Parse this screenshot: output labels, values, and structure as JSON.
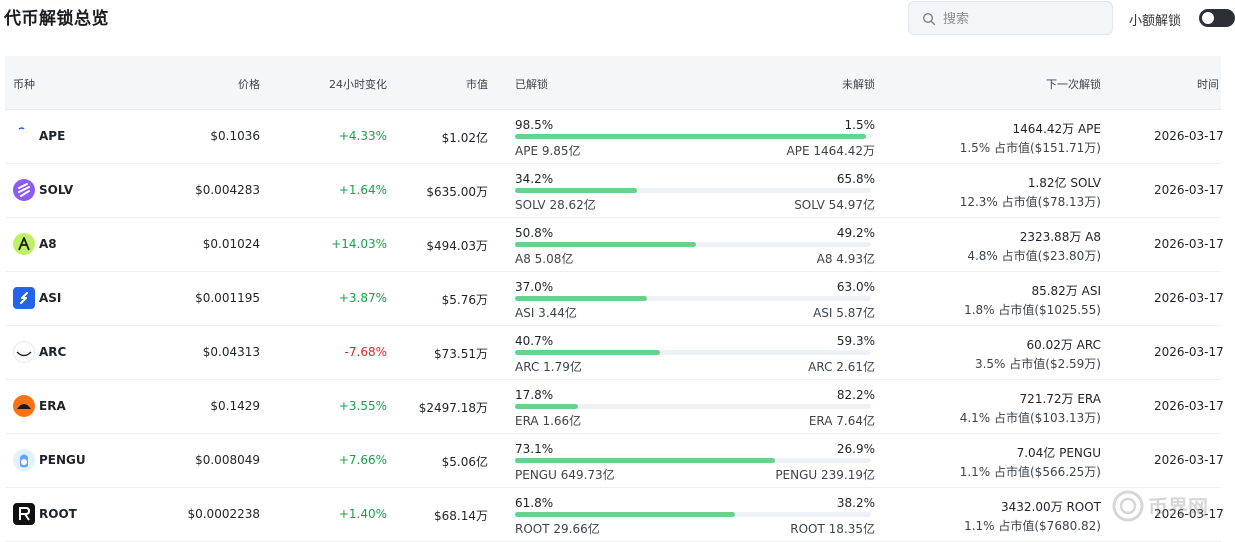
{
  "header": {
    "title": "代币解锁总览",
    "search_placeholder": "搜索",
    "toggle_label": "小额解锁",
    "toggle_on": true
  },
  "columns": {
    "coin": "币种",
    "price": "价格",
    "change_24h": "24小时变化",
    "market_cap": "市值",
    "unlocked": "已解锁",
    "locked": "未解锁",
    "next_unlock": "下一次解锁",
    "time": "时间"
  },
  "colors": {
    "positive": "#16a34a",
    "negative": "#dc2626",
    "progress": "#6cd08d"
  },
  "rows": [
    {
      "symbol": "APE",
      "icon": "ape-icon",
      "price": "$0.1036",
      "change": "+4.33%",
      "direction": "up",
      "market_cap": "$1.02亿",
      "unlocked_pct": "98.5%",
      "unlocked_ratio": 0.985,
      "locked_pct": "1.5%",
      "unlocked_amount": "APE 9.85亿",
      "locked_amount": "APE 1464.42万",
      "next_amount": "1464.42万 APE",
      "next_share": "1.5% 占市值($151.71万)",
      "time": "2026-03-17"
    },
    {
      "symbol": "SOLV",
      "icon": "solv-icon",
      "price": "$0.004283",
      "change": "+1.64%",
      "direction": "up",
      "market_cap": "$635.00万",
      "unlocked_pct": "34.2%",
      "unlocked_ratio": 0.342,
      "locked_pct": "65.8%",
      "unlocked_amount": "SOLV 28.62亿",
      "locked_amount": "SOLV 54.97亿",
      "next_amount": "1.82亿 SOLV",
      "next_share": "12.3% 占市值($78.13万)",
      "time": "2026-03-17"
    },
    {
      "symbol": "A8",
      "icon": "a8-icon",
      "price": "$0.01024",
      "change": "+14.03%",
      "direction": "up",
      "market_cap": "$494.03万",
      "unlocked_pct": "50.8%",
      "unlocked_ratio": 0.508,
      "locked_pct": "49.2%",
      "unlocked_amount": "A8 5.08亿",
      "locked_amount": "A8 4.93亿",
      "next_amount": "2323.88万 A8",
      "next_share": "4.8% 占市值($23.80万)",
      "time": "2026-03-17"
    },
    {
      "symbol": "ASI",
      "icon": "asi-icon",
      "price": "$0.001195",
      "change": "+3.87%",
      "direction": "up",
      "market_cap": "$5.76万",
      "unlocked_pct": "37.0%",
      "unlocked_ratio": 0.37,
      "locked_pct": "63.0%",
      "unlocked_amount": "ASI 3.44亿",
      "locked_amount": "ASI 5.87亿",
      "next_amount": "85.82万 ASI",
      "next_share": "1.8% 占市值($1025.55)",
      "time": "2026-03-17"
    },
    {
      "symbol": "ARC",
      "icon": "arc-icon",
      "price": "$0.04313",
      "change": "-7.68%",
      "direction": "down",
      "market_cap": "$73.51万",
      "unlocked_pct": "40.7%",
      "unlocked_ratio": 0.407,
      "locked_pct": "59.3%",
      "unlocked_amount": "ARC 1.79亿",
      "locked_amount": "ARC 2.61亿",
      "next_amount": "60.02万 ARC",
      "next_share": "3.5% 占市值($2.59万)",
      "time": "2026-03-17"
    },
    {
      "symbol": "ERA",
      "icon": "era-icon",
      "price": "$0.1429",
      "change": "+3.55%",
      "direction": "up",
      "market_cap": "$2497.18万",
      "unlocked_pct": "17.8%",
      "unlocked_ratio": 0.178,
      "locked_pct": "82.2%",
      "unlocked_amount": "ERA 1.66亿",
      "locked_amount": "ERA 7.64亿",
      "next_amount": "721.72万 ERA",
      "next_share": "4.1% 占市值($103.13万)",
      "time": "2026-03-17"
    },
    {
      "symbol": "PENGU",
      "icon": "pengu-icon",
      "price": "$0.008049",
      "change": "+7.66%",
      "direction": "up",
      "market_cap": "$5.06亿",
      "unlocked_pct": "73.1%",
      "unlocked_ratio": 0.731,
      "locked_pct": "26.9%",
      "unlocked_amount": "PENGU 649.73亿",
      "locked_amount": "PENGU 239.19亿",
      "next_amount": "7.04亿 PENGU",
      "next_share": "1.1% 占市值($566.25万)",
      "time": "2026-03-17"
    },
    {
      "symbol": "ROOT",
      "icon": "root-icon",
      "price": "$0.0002238",
      "change": "+1.40%",
      "direction": "up",
      "market_cap": "$68.14万",
      "unlocked_pct": "61.8%",
      "unlocked_ratio": 0.618,
      "locked_pct": "38.2%",
      "unlocked_amount": "ROOT 29.66亿",
      "locked_amount": "ROOT 18.35亿",
      "next_amount": "3432.00万 ROOT",
      "next_share": "1.1% 占市值($7680.82)",
      "time": "2026-03-17"
    }
  ],
  "watermark": {
    "icon": "bijiewang-logo",
    "text": "币界网"
  }
}
